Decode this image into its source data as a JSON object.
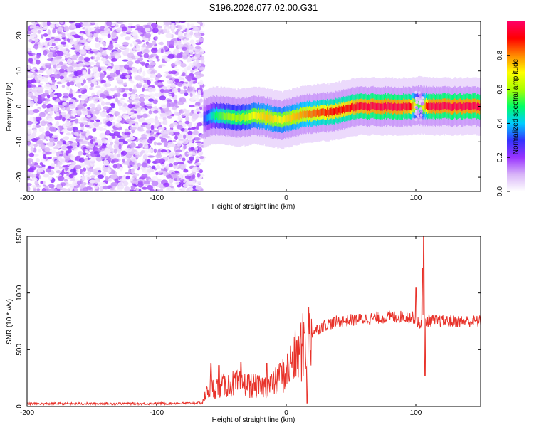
{
  "figure": {
    "title": "S196.2026.077.02.00.G31"
  },
  "chart_data": [
    {
      "type": "heatmap",
      "title": "S196.2026.077.02.00.G31",
      "xlabel": "Height of straight line (km)",
      "ylabel": "Frequency (Hz)",
      "xlim": [
        -200,
        150
      ],
      "ylim": [
        -24,
        24
      ],
      "xticks": [
        -200,
        -100,
        0,
        100
      ],
      "yticks": [
        -20,
        -10,
        0,
        10,
        20
      ],
      "xtick_labels": [
        "-200",
        "-100",
        "0",
        "100"
      ],
      "ytick_labels": [
        "-20",
        "-10",
        "0",
        "10",
        "20"
      ],
      "noise_region_x": [
        -200,
        -64
      ],
      "ridge": {
        "x": [
          -64,
          -55,
          -45,
          -35,
          -25,
          -15,
          -5,
          5,
          15,
          25,
          35,
          45,
          55,
          65,
          75,
          85,
          95,
          102,
          110,
          120,
          130,
          140,
          150
        ],
        "freq": [
          -3.5,
          -2.5,
          -2.8,
          -3.2,
          -2.6,
          -3.0,
          -4.0,
          -3.0,
          -2.2,
          -1.8,
          -1.5,
          -0.8,
          0.0,
          0.0,
          0.0,
          0.0,
          0.0,
          0.3,
          0.0,
          0.0,
          0.0,
          0.0,
          0.0
        ],
        "amplitude": [
          0.3,
          0.5,
          0.6,
          0.6,
          0.7,
          0.75,
          0.7,
          0.75,
          0.8,
          0.85,
          0.9,
          0.9,
          0.95,
          0.97,
          0.98,
          0.98,
          0.95,
          0.5,
          0.98,
          0.98,
          0.98,
          0.98,
          0.98
        ]
      },
      "colorbar": {
        "label": "Normalized spectral amplitude",
        "range": [
          0.0,
          1.0
        ],
        "ticks": [
          0.0,
          0.2,
          0.4,
          0.6,
          0.8
        ],
        "tick_labels": [
          "0.0",
          "0.2",
          "0.4",
          "0.6",
          "0.8"
        ],
        "colors": [
          "#ffffff",
          "#d8b4f8",
          "#9933ff",
          "#3333ff",
          "#00ccff",
          "#00ff66",
          "#aaff00",
          "#ffff00",
          "#ff8800",
          "#ff0000",
          "#ff0066"
        ]
      }
    },
    {
      "type": "line",
      "xlabel": "Height of straight line (km)",
      "ylabel": "SNR (10 * v/v)",
      "xlim": [
        -200,
        150
      ],
      "ylim": [
        0,
        1500
      ],
      "xticks": [
        -200,
        -100,
        0,
        100
      ],
      "yticks": [
        0,
        500,
        1000,
        1500
      ],
      "xtick_labels": [
        "-200",
        "-100",
        "0",
        "100"
      ],
      "ytick_labels": [
        "0",
        "500",
        "1000",
        "1500"
      ],
      "series": [
        {
          "name": "SNR",
          "color": "#e8322a",
          "envelope_x": [
            -200,
            -150,
            -100,
            -65,
            -60,
            -50,
            -40,
            -30,
            -20,
            -10,
            0,
            5,
            10,
            15,
            20,
            30,
            40,
            50,
            60,
            70,
            80,
            90,
            100,
            103,
            105,
            107,
            110,
            120,
            130,
            140,
            150
          ],
          "envelope_mean": [
            25,
            25,
            25,
            30,
            150,
            180,
            200,
            190,
            170,
            200,
            300,
            400,
            480,
            550,
            650,
            720,
            750,
            760,
            770,
            780,
            790,
            790,
            780,
            700,
            780,
            740,
            760,
            750,
            750,
            750,
            750
          ],
          "spikes": [
            {
              "x": -58,
              "y": 380
            },
            {
              "x": -52,
              "y": 360
            },
            {
              "x": -35,
              "y": 390
            },
            {
              "x": -15,
              "y": 380
            },
            {
              "x": -5,
              "y": 380
            },
            {
              "x": 8,
              "y": 580
            },
            {
              "x": 14,
              "y": 650
            },
            {
              "x": 16,
              "y": 30
            },
            {
              "x": 100,
              "y": 1050
            },
            {
              "x": 105,
              "y": 1220
            },
            {
              "x": 106,
              "y": 1500
            },
            {
              "x": 107,
              "y": 270
            }
          ]
        }
      ]
    }
  ]
}
